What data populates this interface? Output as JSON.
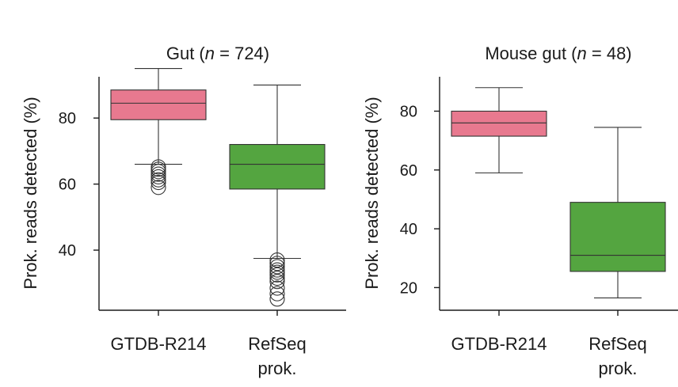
{
  "chart_data": [
    {
      "type": "box",
      "title_prefix": "Gut (",
      "title_n": "n",
      "title_suffix": " = 724)",
      "ylabel": "Prok. reads detected (%)",
      "ylim": [
        21.8,
        92.5
      ],
      "yticks": [
        40,
        60,
        80
      ],
      "series": [
        {
          "name_lines": [
            "GTDB-R214"
          ],
          "color": "#e8798f",
          "whisker_low": 66,
          "q1": 79.5,
          "median": 84.5,
          "q3": 88.5,
          "whisker_high": 95,
          "outliers": [
            65.2,
            64.5,
            63.8,
            63.0,
            62.2,
            61.3,
            60.5,
            59.0
          ]
        },
        {
          "name_lines": [
            "RefSeq",
            "prok."
          ],
          "color": "#54a540",
          "whisker_low": 37.5,
          "q1": 58.5,
          "median": 66,
          "q3": 72,
          "whisker_high": 90,
          "outliers": [
            37.0,
            36.0,
            35.0,
            34.0,
            33.3,
            32.5,
            31.5,
            30.5,
            28.5,
            26.8,
            25.2
          ]
        }
      ]
    },
    {
      "type": "box",
      "title_prefix": "Mouse gut (",
      "title_n": "n",
      "title_suffix": " = 48)",
      "ylabel": "Prok. reads detected (%)",
      "ylim": [
        12.3,
        91.7
      ],
      "yticks": [
        20,
        40,
        60,
        80
      ],
      "series": [
        {
          "name_lines": [
            "GTDB-R214"
          ],
          "color": "#e8798f",
          "whisker_low": 59,
          "q1": 71.5,
          "median": 76,
          "q3": 80,
          "whisker_high": 88,
          "outliers": []
        },
        {
          "name_lines": [
            "RefSeq",
            "prok."
          ],
          "color": "#54a540",
          "whisker_low": 16.5,
          "q1": 25.5,
          "median": 31,
          "q3": 49,
          "whisker_high": 74.5,
          "outliers": []
        }
      ]
    }
  ]
}
